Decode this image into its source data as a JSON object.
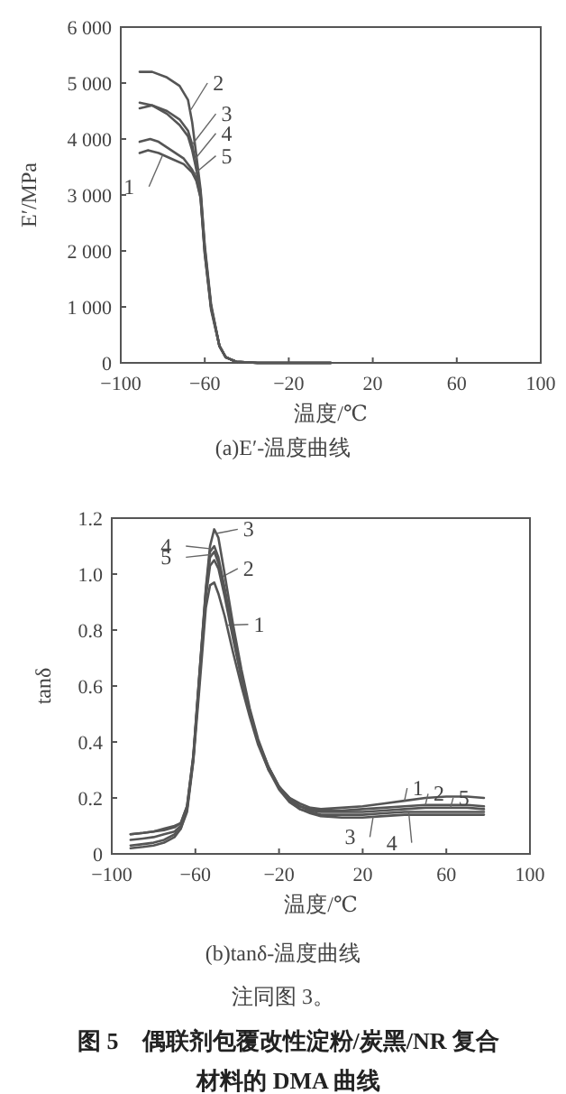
{
  "chart_data": [
    {
      "type": "line",
      "xlabel": "温度/℃",
      "ylabel": "E′/MPa",
      "xlim": [
        -100,
        100
      ],
      "xticks": [
        -100,
        -60,
        -20,
        20,
        60,
        100
      ],
      "ylim": [
        0,
        6000
      ],
      "yticks": [
        0,
        {
          "value": 1000,
          "label": "1 000"
        },
        {
          "value": 2000,
          "label": "2 000"
        },
        {
          "value": 3000,
          "label": "3 000"
        },
        {
          "value": 4000,
          "label": "4 000"
        },
        {
          "value": 5000,
          "label": "5 000"
        },
        {
          "value": 6000,
          "label": "6 000"
        }
      ],
      "grid": false,
      "legend": false,
      "marker": "none",
      "line_style": "solid",
      "series": [
        {
          "name": "1",
          "color": "#555555",
          "x": [
            -91,
            -87,
            -82,
            -76,
            -70,
            -66,
            -64,
            -62,
            -60,
            -57,
            -53,
            -50,
            -45,
            -35,
            -20,
            0
          ],
          "values": [
            3750,
            3800,
            3750,
            3650,
            3550,
            3400,
            3250,
            2950,
            1950,
            950,
            300,
            100,
            20,
            0,
            0,
            0
          ]
        },
        {
          "name": "2",
          "color": "#555555",
          "x": [
            -91,
            -85,
            -78,
            -72,
            -68,
            -66,
            -64,
            -62,
            -60,
            -57,
            -53,
            -50,
            -45,
            -35,
            -20,
            0
          ],
          "values": [
            5200,
            5200,
            5100,
            4950,
            4700,
            4300,
            3700,
            3100,
            2100,
            1050,
            300,
            100,
            20,
            0,
            0,
            0
          ]
        },
        {
          "name": "3",
          "color": "#555555",
          "x": [
            -91,
            -85,
            -78,
            -72,
            -68,
            -66,
            -64,
            -62,
            -60,
            -57,
            -53,
            -50,
            -45,
            -35,
            -20,
            0
          ],
          "values": [
            4650,
            4600,
            4500,
            4350,
            4150,
            3900,
            3500,
            3050,
            2050,
            1000,
            300,
            100,
            20,
            0,
            0,
            0
          ]
        },
        {
          "name": "4",
          "color": "#555555",
          "x": [
            -91,
            -85,
            -78,
            -72,
            -68,
            -66,
            -64,
            -62,
            -60,
            -57,
            -53,
            -50,
            -45,
            -35,
            -20,
            0
          ],
          "values": [
            4550,
            4600,
            4450,
            4250,
            4050,
            3800,
            3450,
            3000,
            2000,
            1000,
            300,
            100,
            20,
            0,
            0,
            0
          ]
        },
        {
          "name": "5",
          "color": "#555555",
          "x": [
            -91,
            -86,
            -82,
            -76,
            -70,
            -66,
            -64,
            -62,
            -60,
            -57,
            -53,
            -50,
            -45,
            -35,
            -20,
            0
          ],
          "values": [
            3950,
            4000,
            3950,
            3800,
            3650,
            3450,
            3300,
            2950,
            1950,
            1000,
            300,
            100,
            20,
            0,
            0,
            0
          ]
        }
      ],
      "annotations": [
        "(a)E′-温度曲线"
      ]
    },
    {
      "type": "line",
      "xlabel": "温度/℃",
      "ylabel": "tanδ",
      "xlim": [
        -100,
        100
      ],
      "xticks": [
        -100,
        -60,
        -20,
        20,
        60,
        100
      ],
      "ylim": [
        0,
        1.2
      ],
      "yticks": [
        0,
        0.2,
        0.4,
        0.6,
        0.8,
        {
          "value": 1.0,
          "label": "1.0"
        },
        1.2
      ],
      "grid": false,
      "legend": false,
      "marker": "none",
      "line_style": "solid",
      "series": [
        {
          "name": "1",
          "color": "#555555",
          "x": [
            -91,
            -85,
            -80,
            -75,
            -70,
            -67,
            -64,
            -61,
            -58,
            -55,
            -53,
            -51,
            -49,
            -46,
            -42,
            -38,
            -34,
            -30,
            -25,
            -20,
            -15,
            -10,
            -5,
            0,
            10,
            20,
            30,
            40,
            50,
            60,
            70,
            78
          ],
          "values": [
            0.02,
            0.025,
            0.03,
            0.04,
            0.06,
            0.09,
            0.15,
            0.33,
            0.6,
            0.88,
            0.96,
            0.97,
            0.93,
            0.85,
            0.72,
            0.6,
            0.49,
            0.39,
            0.3,
            0.24,
            0.2,
            0.18,
            0.165,
            0.16,
            0.165,
            0.17,
            0.18,
            0.19,
            0.2,
            0.205,
            0.205,
            0.2
          ]
        },
        {
          "name": "2",
          "color": "#555555",
          "x": [
            -91,
            -85,
            -80,
            -75,
            -70,
            -67,
            -64,
            -61,
            -58,
            -55,
            -53,
            -51,
            -49,
            -46,
            -42,
            -38,
            -34,
            -30,
            -25,
            -20,
            -15,
            -10,
            -5,
            0,
            10,
            20,
            30,
            40,
            50,
            60,
            70,
            78
          ],
          "values": [
            0.05,
            0.055,
            0.06,
            0.07,
            0.08,
            0.1,
            0.16,
            0.34,
            0.63,
            0.92,
            1.03,
            1.05,
            1.02,
            0.92,
            0.77,
            0.63,
            0.51,
            0.4,
            0.31,
            0.24,
            0.2,
            0.17,
            0.16,
            0.155,
            0.155,
            0.16,
            0.165,
            0.17,
            0.175,
            0.175,
            0.175,
            0.17
          ]
        },
        {
          "name": "3",
          "color": "#555555",
          "x": [
            -91,
            -85,
            -80,
            -75,
            -70,
            -67,
            -64,
            -61,
            -58,
            -55,
            -53,
            -51,
            -49,
            -46,
            -42,
            -38,
            -34,
            -30,
            -25,
            -20,
            -15,
            -10,
            -5,
            0,
            10,
            20,
            30,
            40,
            50,
            60,
            70,
            78
          ],
          "values": [
            0.07,
            0.075,
            0.08,
            0.085,
            0.095,
            0.11,
            0.17,
            0.35,
            0.65,
            0.95,
            1.1,
            1.16,
            1.13,
            1.0,
            0.82,
            0.66,
            0.52,
            0.41,
            0.31,
            0.24,
            0.19,
            0.16,
            0.145,
            0.135,
            0.13,
            0.13,
            0.135,
            0.14,
            0.14,
            0.14,
            0.14,
            0.14
          ]
        },
        {
          "name": "4",
          "color": "#555555",
          "x": [
            -91,
            -85,
            -80,
            -75,
            -70,
            -67,
            -64,
            -61,
            -58,
            -55,
            -53,
            -51,
            -49,
            -46,
            -42,
            -38,
            -34,
            -30,
            -25,
            -20,
            -15,
            -10,
            -5,
            0,
            10,
            20,
            30,
            40,
            50,
            60,
            70,
            78
          ],
          "values": [
            0.07,
            0.075,
            0.08,
            0.09,
            0.1,
            0.11,
            0.17,
            0.35,
            0.65,
            0.94,
            1.08,
            1.1,
            1.06,
            0.95,
            0.79,
            0.64,
            0.51,
            0.4,
            0.3,
            0.23,
            0.185,
            0.16,
            0.15,
            0.14,
            0.14,
            0.14,
            0.145,
            0.15,
            0.15,
            0.15,
            0.15,
            0.15
          ]
        },
        {
          "name": "5",
          "color": "#555555",
          "x": [
            -91,
            -85,
            -80,
            -75,
            -70,
            -67,
            -64,
            -61,
            -58,
            -55,
            -53,
            -51,
            -49,
            -46,
            -42,
            -38,
            -34,
            -30,
            -25,
            -20,
            -15,
            -10,
            -5,
            0,
            10,
            20,
            30,
            40,
            50,
            60,
            70,
            78
          ],
          "values": [
            0.03,
            0.035,
            0.04,
            0.05,
            0.07,
            0.09,
            0.16,
            0.34,
            0.64,
            0.93,
            1.06,
            1.08,
            1.04,
            0.94,
            0.78,
            0.63,
            0.51,
            0.4,
            0.31,
            0.24,
            0.195,
            0.17,
            0.155,
            0.15,
            0.15,
            0.15,
            0.155,
            0.16,
            0.165,
            0.165,
            0.165,
            0.16
          ]
        }
      ],
      "annotations": [
        "(b)tanδ-温度曲线",
        "注同图 3。",
        "图 5　偶联剂包覆改性淀粉/炭黑/NR 复合材料的 DMA 曲线"
      ]
    }
  ]
}
